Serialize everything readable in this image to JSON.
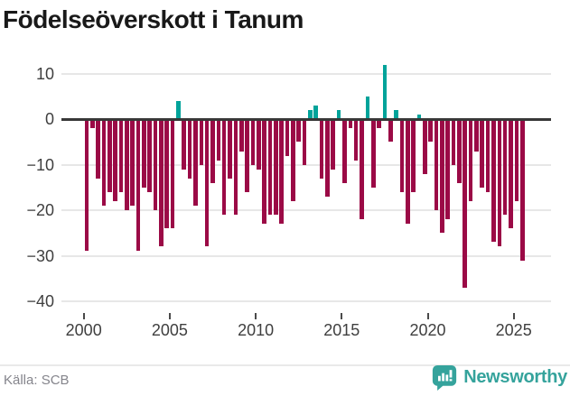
{
  "title": "Födelseöverskott i Tanum",
  "source": "Källa: SCB",
  "brand": {
    "name": "Newsworthy",
    "icon": "newsworthy-speech-bubble-bar-chart-icon",
    "color": "#35a39c"
  },
  "colors": {
    "positive_bar": "#00a39a",
    "negative_bar": "#9b0a46",
    "zero_line": "#383838",
    "gridline": "#e7e7e7",
    "axis_text": "#3f3f3f",
    "title_text": "#191919",
    "source_text": "#85858c"
  },
  "chart_data": {
    "type": "bar",
    "title": "Födelseöverskott i Tanum",
    "xlabel": "",
    "ylabel": "",
    "period_note": "three bars per year (4-month periods), 2000 through mid-2025",
    "ylim": [
      -42,
      13
    ],
    "y_ticks": [
      10,
      0,
      -10,
      -20,
      -30,
      -40
    ],
    "x_ticks": [
      2000,
      2005,
      2010,
      2015,
      2020,
      2025
    ],
    "grid": "horizontal",
    "legend": "none",
    "positive_color": "#00a39a",
    "negative_color": "#9b0a46",
    "years": [
      {
        "year": 2000,
        "values": [
          -29,
          -2,
          -13
        ]
      },
      {
        "year": 2001,
        "values": [
          -19,
          -16,
          -18
        ]
      },
      {
        "year": 2002,
        "values": [
          -16,
          -20,
          -19
        ]
      },
      {
        "year": 2003,
        "values": [
          -29,
          -15,
          -16
        ]
      },
      {
        "year": 2004,
        "values": [
          -20,
          -28,
          -24
        ]
      },
      {
        "year": 2005,
        "values": [
          -24,
          4,
          -11
        ]
      },
      {
        "year": 2006,
        "values": [
          -13,
          -19,
          -10
        ]
      },
      {
        "year": 2007,
        "values": [
          -28,
          -14,
          -9
        ]
      },
      {
        "year": 2008,
        "values": [
          -21,
          -13,
          -21
        ]
      },
      {
        "year": 2009,
        "values": [
          -7,
          -16,
          -10
        ]
      },
      {
        "year": 2010,
        "values": [
          -11,
          -23,
          -21
        ]
      },
      {
        "year": 2011,
        "values": [
          -21,
          -23,
          -8
        ]
      },
      {
        "year": 2012,
        "values": [
          -18,
          -5,
          -10
        ]
      },
      {
        "year": 2013,
        "values": [
          2,
          3,
          -13
        ]
      },
      {
        "year": 2014,
        "values": [
          -17,
          -11,
          2
        ]
      },
      {
        "year": 2015,
        "values": [
          -14,
          -2,
          -9
        ]
      },
      {
        "year": 2016,
        "values": [
          -22,
          5,
          -15
        ]
      },
      {
        "year": 2017,
        "values": [
          -2,
          12,
          -5
        ]
      },
      {
        "year": 2018,
        "values": [
          2,
          -16,
          -23
        ]
      },
      {
        "year": 2019,
        "values": [
          -16,
          1,
          -12
        ]
      },
      {
        "year": 2020,
        "values": [
          -5,
          -20,
          -25
        ]
      },
      {
        "year": 2021,
        "values": [
          -22,
          -10,
          -14
        ]
      },
      {
        "year": 2022,
        "values": [
          -37,
          -18,
          -7
        ]
      },
      {
        "year": 2023,
        "values": [
          -15,
          -16,
          -27
        ]
      },
      {
        "year": 2024,
        "values": [
          -28,
          -21,
          -24
        ]
      },
      {
        "year": 2025,
        "values": [
          -18,
          -31
        ]
      }
    ]
  }
}
